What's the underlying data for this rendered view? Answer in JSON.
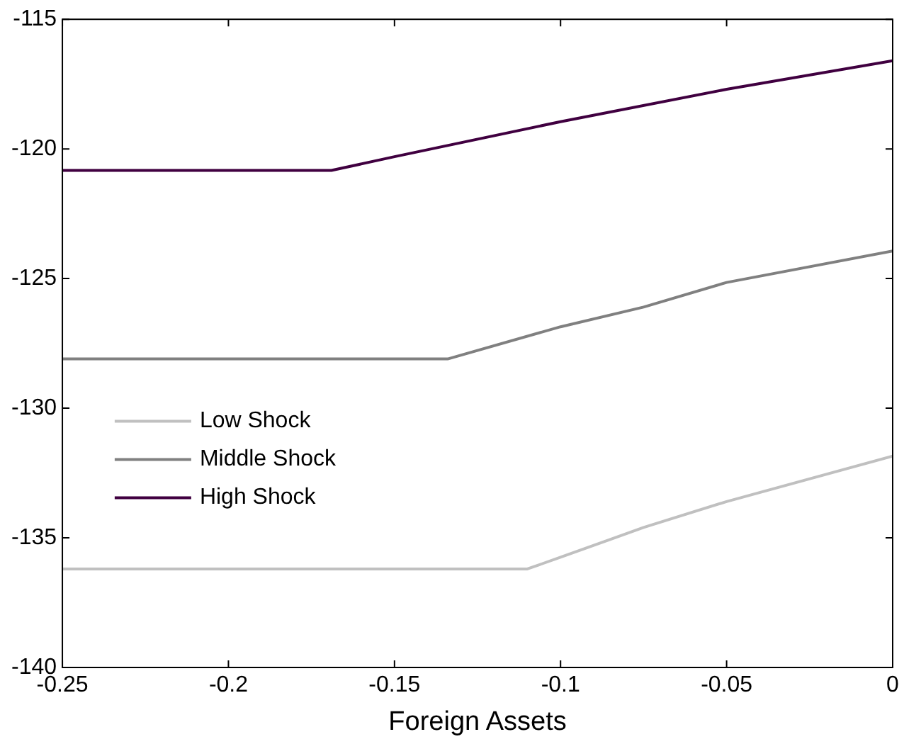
{
  "chart_data": {
    "type": "line",
    "xlabel": "Foreign Assets",
    "xlim": [
      -0.25,
      0
    ],
    "xticks": [
      -0.25,
      -0.2,
      -0.15,
      -0.1,
      -0.05,
      0
    ],
    "ylim": [
      -140,
      -115
    ],
    "yticks": [
      -140,
      -135,
      -130,
      -125,
      -120,
      -115
    ],
    "grid": false,
    "legend": "left",
    "marker": "none",
    "line_style": "solid",
    "series": [
      {
        "name": "Low Shock",
        "color": "#c0c0c0",
        "x": [
          -0.25,
          -0.11,
          -0.1,
          -0.075,
          -0.05,
          0
        ],
        "values": [
          -136.2,
          -136.2,
          -135.75,
          -134.6,
          -133.6,
          -131.85
        ]
      },
      {
        "name": "Middle Shock",
        "color": "#808080",
        "x": [
          -0.25,
          -0.134,
          -0.1,
          -0.075,
          -0.05,
          0
        ],
        "values": [
          -128.1,
          -128.1,
          -126.86,
          -126.1,
          -125.15,
          -123.94
        ]
      },
      {
        "name": "High Shock",
        "color": "#400040",
        "x": [
          -0.25,
          -0.169,
          -0.15,
          -0.1,
          -0.05,
          0
        ],
        "values": [
          -120.83,
          -120.83,
          -120.3,
          -118.95,
          -117.7,
          -116.6
        ]
      }
    ]
  }
}
